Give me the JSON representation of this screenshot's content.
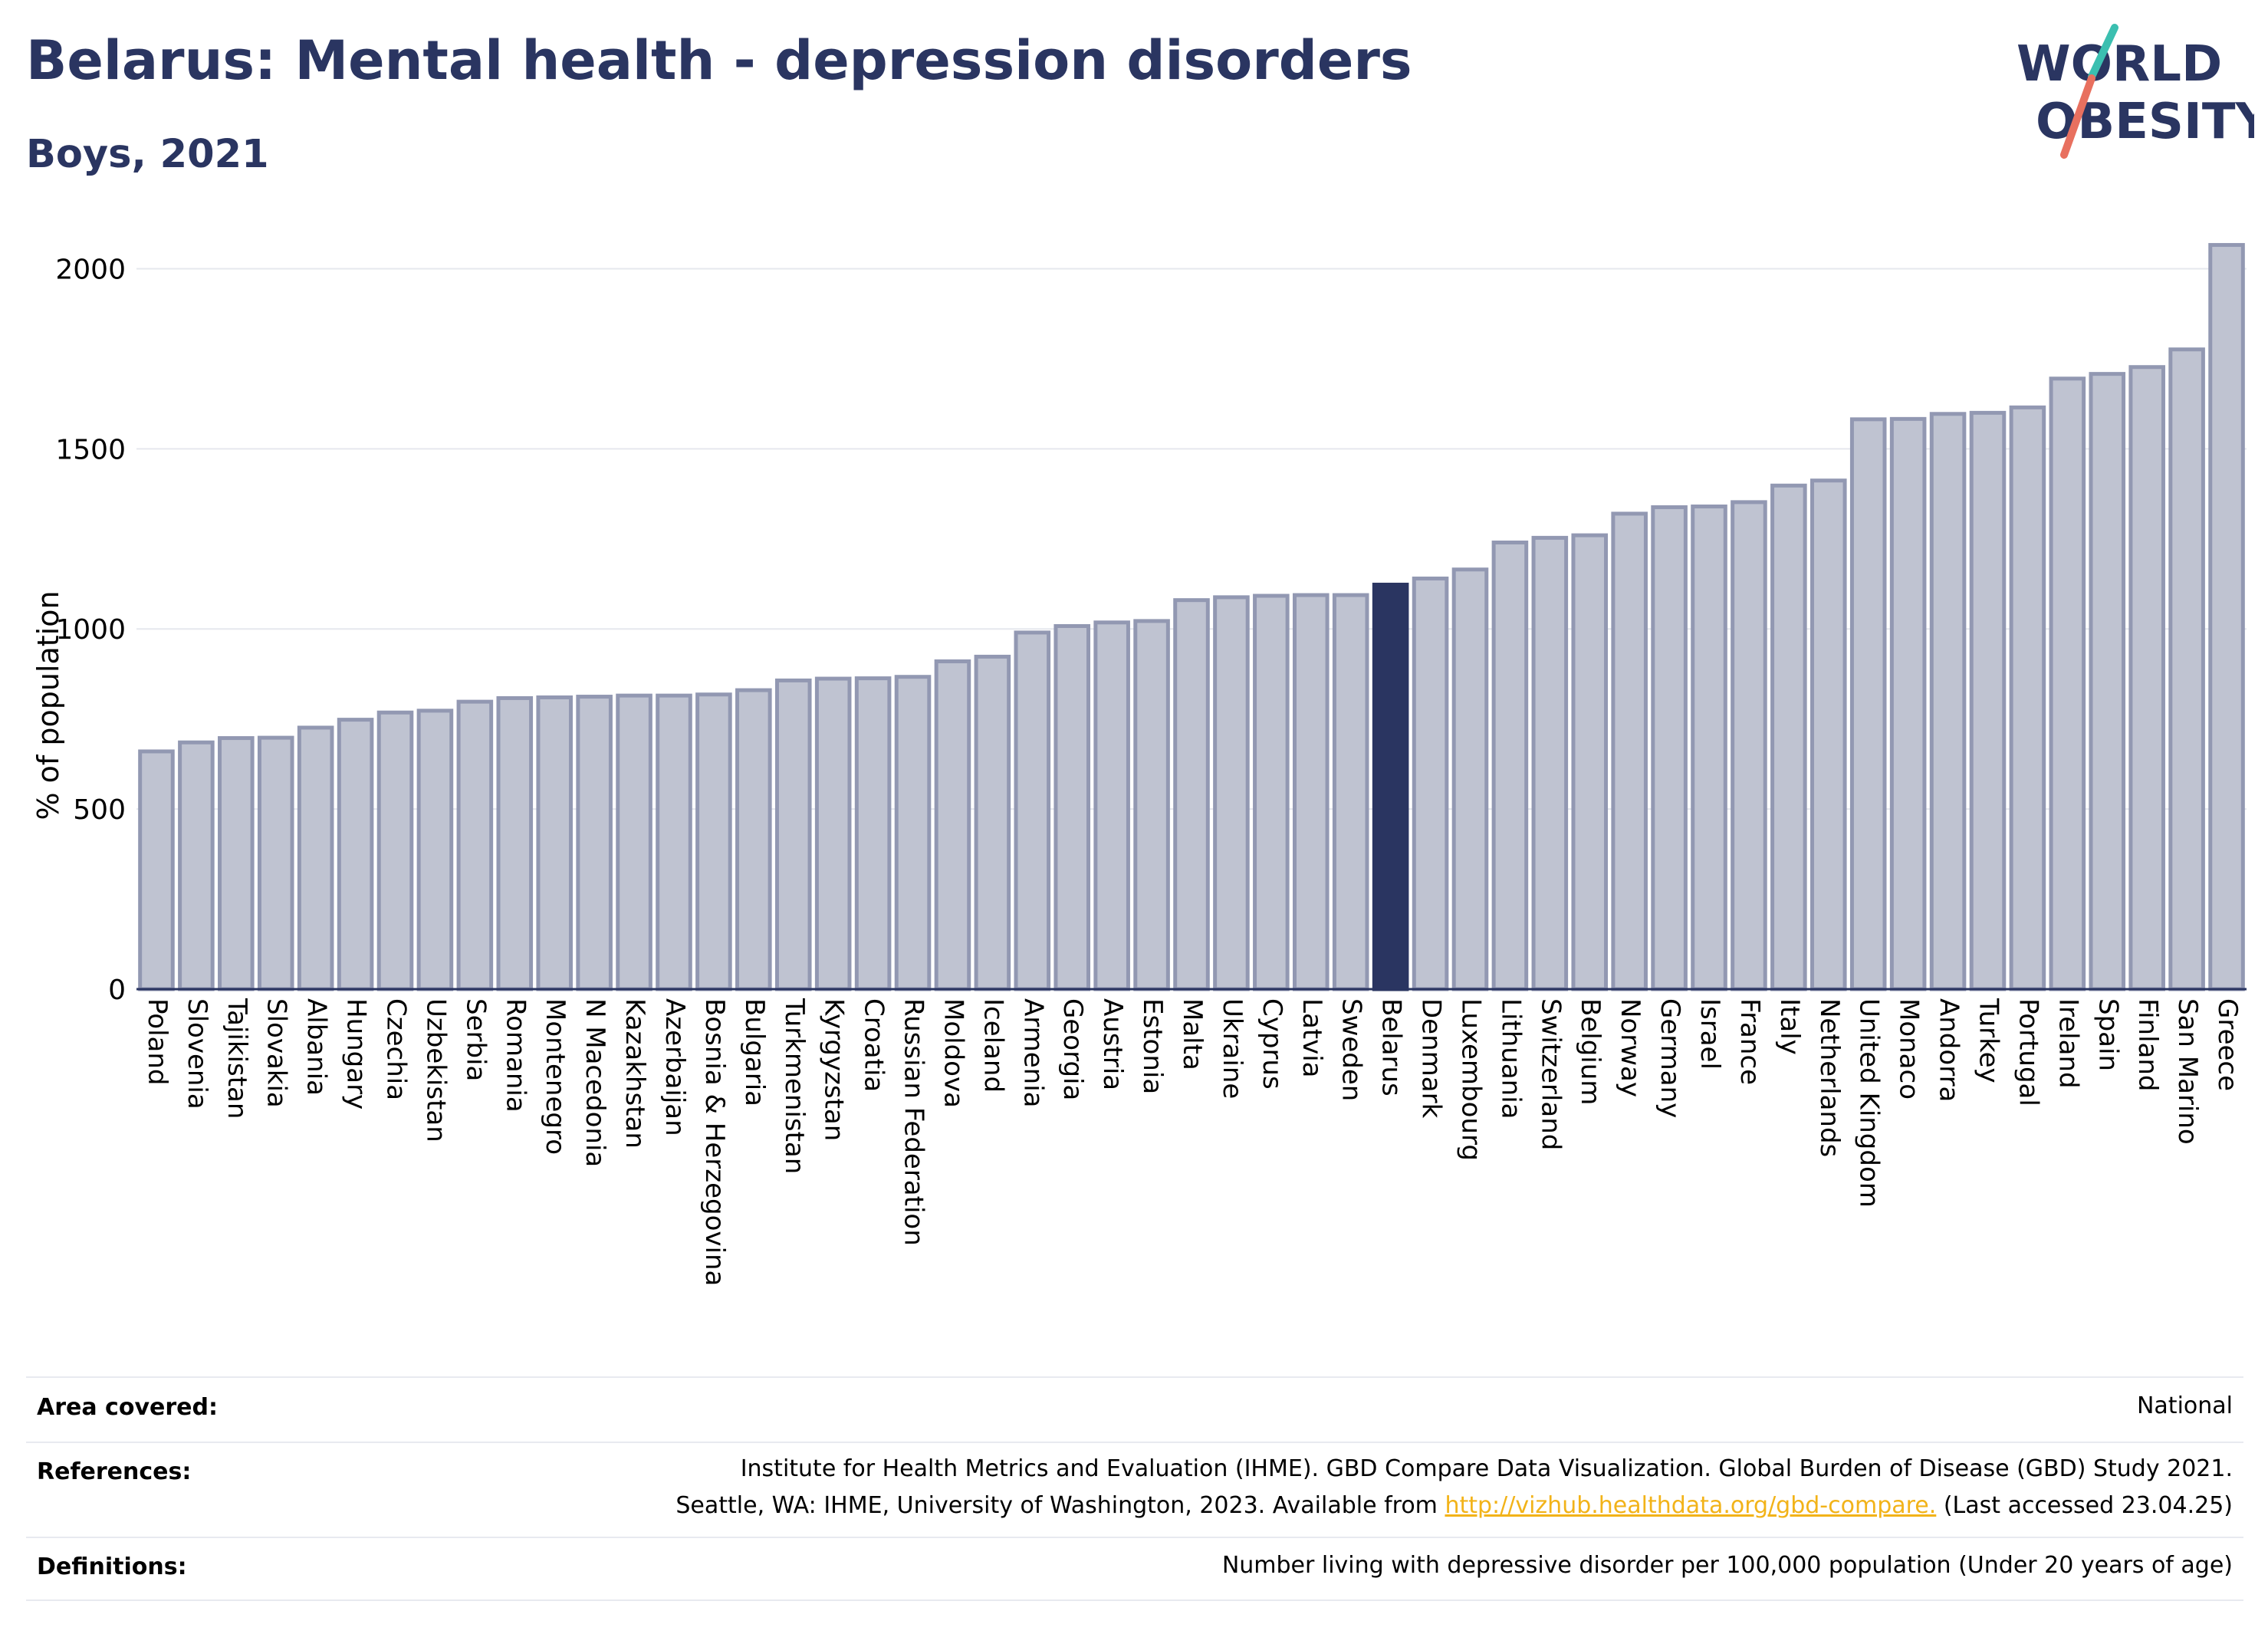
{
  "header": {
    "title": "Belarus: Mental health - depression disorders",
    "subtitle": "Boys, 2021"
  },
  "logo": {
    "line1": "WORLD",
    "line2": "OBESITY"
  },
  "chart_data": {
    "type": "bar",
    "title": "Belarus: Mental health - depression disorders",
    "subtitle": "Boys, 2021",
    "xlabel": "",
    "ylabel": "% of population",
    "ylim": [
      0,
      2150
    ],
    "yticks": [
      0,
      500,
      1000,
      1500,
      2000
    ],
    "grid": true,
    "highlight": "Belarus",
    "colors": {
      "bar": "#bfc3d1",
      "bar_stroke": "#9298b2",
      "highlight": "#2a3561"
    },
    "categories": [
      "Poland",
      "Slovenia",
      "Tajikistan",
      "Slovakia",
      "Albania",
      "Hungary",
      "Czechia",
      "Uzbekistan",
      "Serbia",
      "Romania",
      "Montenegro",
      "N Macedonia",
      "Kazakhstan",
      "Azerbaijan",
      "Bosnia & Herzegovina",
      "Bulgaria",
      "Turkmenistan",
      "Kyrgyzstan",
      "Croatia",
      "Russian Federation",
      "Moldova",
      "Iceland",
      "Armenia",
      "Georgia",
      "Austria",
      "Estonia",
      "Malta",
      "Ukraine",
      "Cyprus",
      "Latvia",
      "Sweden",
      "Belarus",
      "Denmark",
      "Luxembourg",
      "Lithuania",
      "Switzerland",
      "Belgium",
      "Norway",
      "Germany",
      "Israel",
      "France",
      "Italy",
      "Netherlands",
      "United Kingdom",
      "Monaco",
      "Andorra",
      "Turkey",
      "Portugal",
      "Ireland",
      "Spain",
      "Finland",
      "San Marino",
      "Greece"
    ],
    "values": [
      660,
      685,
      697,
      698,
      726,
      748,
      768,
      773,
      798,
      808,
      810,
      812,
      815,
      815,
      818,
      830,
      857,
      862,
      863,
      867,
      910,
      923,
      990,
      1008,
      1018,
      1022,
      1080,
      1088,
      1092,
      1094,
      1094,
      1123,
      1140,
      1165,
      1240,
      1253,
      1260,
      1320,
      1338,
      1340,
      1352,
      1398,
      1412,
      1582,
      1583,
      1597,
      1600,
      1615,
      1695,
      1708,
      1727,
      1776,
      2066
    ]
  },
  "footer": {
    "area_label": "Area covered:",
    "area_value": "National",
    "references_label": "References:",
    "references_line1": "Institute for Health Metrics and Evaluation (IHME). GBD Compare Data Visualization. Global Burden of Disease (GBD) Study 2021.",
    "references_line2_pre": "Seattle, WA: IHME, University of Washington, 2023. Available from ",
    "references_link": "http://vizhub.healthdata.org/gbd-compare.",
    "references_line2_post": " (Last accessed 23.04.25)",
    "definitions_label": "Definitions:",
    "definitions_value": "Number living with depressive disorder per 100,000 population (Under 20 years of age)"
  }
}
